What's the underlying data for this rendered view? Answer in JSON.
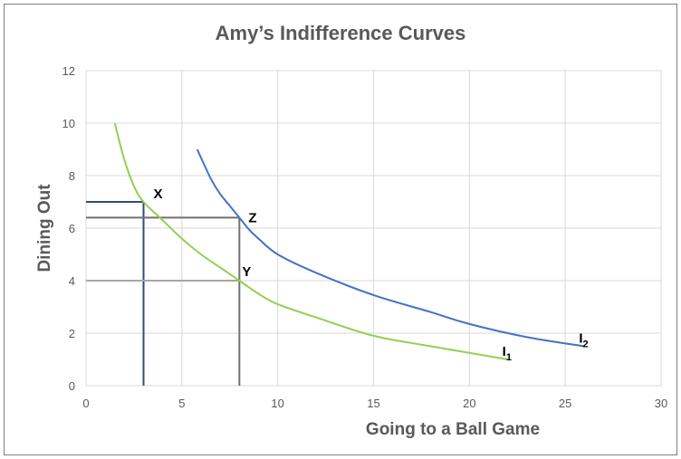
{
  "chart_data": {
    "type": "line",
    "title": "Amy’s Indifference Curves",
    "xlabel": "Going to a Ball Game",
    "ylabel": "Dining Out",
    "xlim": [
      0,
      30
    ],
    "ylim": [
      0,
      12
    ],
    "xticks": [
      "0",
      "5",
      "10",
      "15",
      "20",
      "25",
      "30"
    ],
    "yticks": [
      "0",
      "2",
      "4",
      "6",
      "8",
      "10",
      "12"
    ],
    "grid": "vertical and horizontal major gridlines",
    "series": [
      {
        "name": "I",
        "sub": "1",
        "color": "#92D050",
        "x": [
          1.5,
          2.0,
          2.5,
          3.0,
          4.0,
          5.0,
          6.0,
          7.0,
          8.0,
          9.0,
          10.0,
          12.0,
          15.0,
          18.0,
          22.0
        ],
        "y": [
          10.0,
          8.6,
          7.6,
          7.0,
          6.3,
          5.6,
          5.0,
          4.5,
          4.0,
          3.5,
          3.1,
          2.6,
          1.9,
          1.5,
          1.0
        ]
      },
      {
        "name": "I",
        "sub": "2",
        "color": "#4472C4",
        "x": [
          5.8,
          6.5,
          7.0,
          7.5,
          8.0,
          8.5,
          9.0,
          10.0,
          12.0,
          15.0,
          18.0,
          20.0,
          23.0,
          26.0
        ],
        "y": [
          9.0,
          7.9,
          7.3,
          6.85,
          6.4,
          5.95,
          5.6,
          5.0,
          4.3,
          3.45,
          2.8,
          2.35,
          1.85,
          1.5
        ]
      }
    ],
    "points": [
      {
        "label": "X",
        "x": 3,
        "y": 7,
        "color": "#2F4B7C"
      },
      {
        "label": "Z",
        "x": 8,
        "y": 6.4,
        "color": "#707070"
      },
      {
        "label": "Y",
        "x": 8,
        "y": 4,
        "color": "#A6A6A6"
      }
    ]
  }
}
